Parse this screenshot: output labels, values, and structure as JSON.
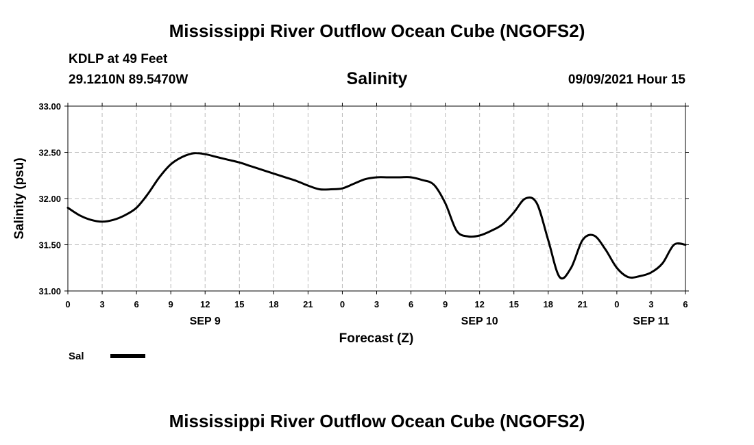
{
  "header": {
    "title": "Mississippi River Outflow Ocean Cube (NGOFS2)",
    "station": "KDLP at 49 Feet",
    "coords": "29.1210N  89.5470W",
    "subtitle": "Salinity",
    "datetime": "09/09/2021 Hour 15",
    "footer_title": "Mississippi River Outflow Ocean Cube (NGOFS2)"
  },
  "colors": {
    "line": "#000000",
    "grid": "#bbbbbb"
  },
  "chart_data": {
    "type": "line",
    "title": "Salinity",
    "xlabel": "Forecast (Z)",
    "ylabel": "Salinity (psu)",
    "xlim": [
      0,
      54
    ],
    "ylim": [
      31.0,
      33.0
    ],
    "y_ticks": [
      31.0,
      31.5,
      32.0,
      32.5,
      33.0
    ],
    "y_tick_labels": [
      "31.00",
      "31.50",
      "32.00",
      "32.50",
      "33.00"
    ],
    "x_ticks": [
      0,
      3,
      6,
      9,
      12,
      15,
      18,
      21,
      24,
      27,
      30,
      33,
      36,
      39,
      42,
      45,
      48,
      51,
      54
    ],
    "x_tick_labels": [
      "0",
      "3",
      "6",
      "9",
      "12",
      "15",
      "18",
      "21",
      "0",
      "3",
      "6",
      "9",
      "12",
      "15",
      "18",
      "21",
      "0",
      "3",
      "6"
    ],
    "date_labels": [
      {
        "hour": 12,
        "label": "SEP 9"
      },
      {
        "hour": 36,
        "label": "SEP 10"
      },
      {
        "hour": 51,
        "label": "SEP 11"
      }
    ],
    "grid": true,
    "legend": [
      {
        "name": "Sal",
        "position": "bottom-left"
      }
    ],
    "series": [
      {
        "name": "Sal",
        "x": [
          0,
          1,
          2,
          3,
          4,
          5,
          6,
          7,
          8,
          9,
          10,
          11,
          12,
          13,
          14,
          15,
          16,
          17,
          18,
          19,
          20,
          21,
          22,
          23,
          24,
          25,
          26,
          27,
          28,
          29,
          30,
          31,
          32,
          33,
          34,
          35,
          36,
          37,
          38,
          39,
          40,
          41,
          42,
          43,
          44,
          45,
          46,
          47,
          48,
          49,
          50,
          51,
          52,
          53,
          54
        ],
        "values": [
          31.9,
          31.82,
          31.77,
          31.75,
          31.77,
          31.82,
          31.9,
          32.05,
          32.23,
          32.37,
          32.45,
          32.49,
          32.48,
          32.45,
          32.42,
          32.39,
          32.35,
          32.31,
          32.27,
          32.23,
          32.19,
          32.14,
          32.1,
          32.1,
          32.11,
          32.16,
          32.21,
          32.23,
          32.23,
          32.23,
          32.23,
          32.2,
          32.15,
          31.95,
          31.65,
          31.59,
          31.6,
          31.65,
          31.72,
          31.85,
          32.0,
          31.95,
          31.55,
          31.15,
          31.25,
          31.55,
          31.6,
          31.45,
          31.25,
          31.15,
          31.16,
          31.2,
          31.3,
          31.5,
          31.5
        ]
      }
    ]
  }
}
